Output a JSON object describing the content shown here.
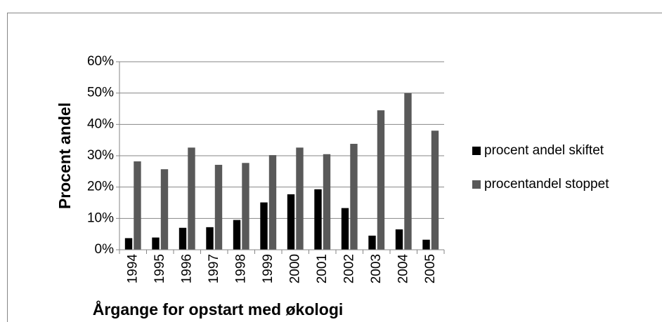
{
  "chart_data": {
    "type": "bar",
    "xlabel": "Årgange for opstart med økologi",
    "ylabel": "Procent andel",
    "categories": [
      "1994",
      "1995",
      "1996",
      "1997",
      "1998",
      "1999",
      "2000",
      "2001",
      "2002",
      "2003",
      "2004",
      "2005"
    ],
    "series": [
      {
        "name": "procent andel skiftet",
        "color": "#000000",
        "values": [
          3.7,
          3.9,
          7.0,
          7.2,
          9.5,
          15.1,
          17.7,
          19.3,
          13.3,
          4.5,
          6.5,
          3.2
        ]
      },
      {
        "name": "procentandel stoppet",
        "color": "#595959",
        "values": [
          28.2,
          25.7,
          32.6,
          27.1,
          27.7,
          30.2,
          32.6,
          30.5,
          33.8,
          44.5,
          50.0,
          38.0
        ]
      }
    ],
    "ylim": [
      0,
      60
    ],
    "yticks": [
      {
        "value": 0,
        "label": "0%"
      },
      {
        "value": 10,
        "label": "10%"
      },
      {
        "value": 20,
        "label": "20%"
      },
      {
        "value": 30,
        "label": "30%"
      },
      {
        "value": 40,
        "label": "40%"
      },
      {
        "value": 50,
        "label": "50%"
      },
      {
        "value": 60,
        "label": "60%"
      }
    ],
    "grid": true,
    "legend": "right"
  }
}
